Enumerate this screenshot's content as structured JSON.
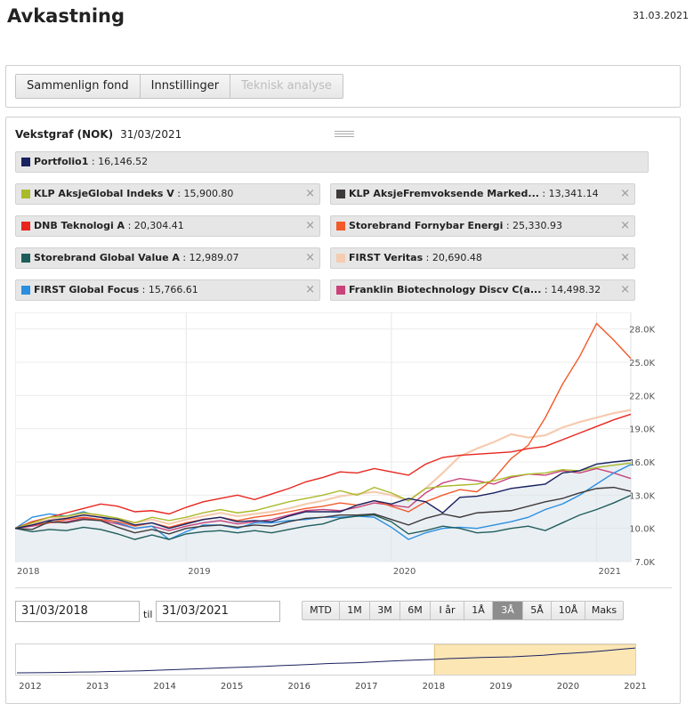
{
  "header": {
    "title": "Avkastning",
    "date": "31.03.2021"
  },
  "tabs": [
    {
      "label": "Sammenlign fond",
      "disabled": false
    },
    {
      "label": "Innstillinger",
      "disabled": false
    },
    {
      "label": "Teknisk analyse",
      "disabled": true
    }
  ],
  "growth": {
    "title": "Vekstgraf (NOK)",
    "date": "31/03/2021"
  },
  "portfolio": {
    "name": "Portfolio1",
    "value": ": 16,146.52",
    "color": "#1a2260"
  },
  "funds": [
    {
      "name": "KLP AksjeGlobal Indeks V",
      "value": ": 15,900.80",
      "color": "#a9ba2a"
    },
    {
      "name": "KLP AksjeFremvoksende Marked...",
      "value": ": 13,341.14",
      "color": "#3e3a3a"
    },
    {
      "name": "DNB Teknologi A",
      "value": ": 20,304.41",
      "color": "#e8261f"
    },
    {
      "name": "Storebrand Fornybar Energi",
      "value": ": 25,330.93",
      "color": "#f25a2a"
    },
    {
      "name": "Storebrand Global Value A",
      "value": ": 12,989.07",
      "color": "#1f5d5a"
    },
    {
      "name": "FIRST Veritas",
      "value": ": 20,690.48",
      "color": "#f5ccb0"
    },
    {
      "name": "FIRST Global Focus",
      "value": ": 15,766.61",
      "color": "#2a8fe0"
    },
    {
      "name": "Franklin Biotechnology Discv C(a...",
      "value": ": 14,498.32",
      "color": "#c9427a"
    }
  ],
  "chart_data": {
    "type": "line",
    "x_ticks": [
      "2018",
      "2019",
      "2020",
      "2021"
    ],
    "y_ticks": [
      "7.0K",
      "10.0K",
      "13.0K",
      "16.0K",
      "19.0K",
      "22.0K",
      "25.0K",
      "28.0K"
    ],
    "ylim": [
      7000,
      29500
    ],
    "xlim": [
      0,
      36
    ],
    "grid": true,
    "series": [
      {
        "name": "Portfolio1",
        "color": "#1a2260",
        "fill": true,
        "values": [
          10000,
          10300,
          10700,
          10900,
          11200,
          11000,
          10800,
          10300,
          10500,
          10000,
          10400,
          10800,
          11000,
          10600,
          10700,
          10600,
          11100,
          11500,
          11500,
          11500,
          12100,
          12500,
          12200,
          12700,
          12400,
          11400,
          12800,
          12900,
          13200,
          13600,
          13800,
          14000,
          15000,
          15200,
          15800,
          16000,
          16150
        ]
      },
      {
        "name": "KLP AksjeGlobal Indeks V",
        "color": "#a9ba2a",
        "values": [
          10000,
          10500,
          11000,
          11100,
          11400,
          11200,
          10900,
          10500,
          11000,
          10700,
          11000,
          11400,
          11700,
          11400,
          11600,
          12000,
          12400,
          12700,
          13000,
          13400,
          13000,
          13700,
          13200,
          12500,
          13600,
          13800,
          13900,
          14000,
          14300,
          14700,
          14900,
          15000,
          15300,
          15200,
          15500,
          15700,
          15900
        ]
      },
      {
        "name": "KLP AksjeFremvoksende Marked...",
        "color": "#3e3a3a",
        "values": [
          10000,
          9900,
          10600,
          10500,
          10800,
          10700,
          10100,
          9600,
          9900,
          9500,
          10000,
          10200,
          10300,
          10100,
          10300,
          10200,
          10600,
          10900,
          11000,
          11200,
          11200,
          11300,
          10800,
          10300,
          10900,
          11300,
          11000,
          11400,
          11500,
          11600,
          12000,
          12400,
          12700,
          13200,
          13600,
          13700,
          13341
        ]
      },
      {
        "name": "DNB Teknologi A",
        "color": "#e8261f",
        "values": [
          10000,
          10600,
          11000,
          11400,
          11800,
          12200,
          12000,
          11500,
          11600,
          11300,
          11900,
          12400,
          12700,
          13000,
          12600,
          13100,
          13600,
          14200,
          14600,
          15100,
          15000,
          15400,
          15100,
          14800,
          15800,
          16400,
          16600,
          16700,
          16800,
          16900,
          17200,
          17400,
          18000,
          18600,
          19200,
          19800,
          20304
        ]
      },
      {
        "name": "Storebrand Fornybar Energi",
        "color": "#f25a2a",
        "values": [
          10000,
          10300,
          10500,
          10800,
          11000,
          10800,
          10600,
          10200,
          10500,
          10100,
          10500,
          10800,
          11000,
          10700,
          11000,
          11200,
          11500,
          11800,
          12000,
          12300,
          12100,
          12500,
          12000,
          11500,
          12400,
          13000,
          13500,
          13300,
          14500,
          16300,
          17500,
          20000,
          23000,
          25500,
          28500,
          27000,
          25330
        ]
      },
      {
        "name": "Storebrand Global Value A",
        "color": "#1f5d5a",
        "values": [
          10000,
          9700,
          9900,
          9800,
          10100,
          9900,
          9500,
          9000,
          9400,
          9000,
          9500,
          9700,
          9800,
          9600,
          9800,
          9600,
          9900,
          10200,
          10400,
          10900,
          11100,
          11200,
          10600,
          9500,
          9800,
          10200,
          10000,
          9600,
          9700,
          10000,
          10200,
          9800,
          10500,
          11200,
          11700,
          12300,
          12989
        ]
      },
      {
        "name": "FIRST Veritas",
        "color": "#f5ccb0",
        "values": [
          10000,
          10400,
          10800,
          11000,
          11300,
          11100,
          10900,
          10500,
          10800,
          10400,
          10800,
          11100,
          11400,
          11100,
          11300,
          11500,
          11800,
          12200,
          12500,
          12900,
          13100,
          13300,
          13000,
          12500,
          13600,
          15000,
          16500,
          17200,
          17800,
          18500,
          18200,
          18400,
          19100,
          19600,
          20000,
          20400,
          20690
        ]
      },
      {
        "name": "FIRST Global Focus",
        "color": "#2a8fe0",
        "values": [
          10000,
          11000,
          11300,
          11100,
          11500,
          11000,
          10500,
          10000,
          10200,
          9000,
          9700,
          10300,
          10300,
          10000,
          10500,
          10500,
          10700,
          10800,
          11000,
          11000,
          11100,
          11000,
          10100,
          9000,
          9600,
          10000,
          10100,
          10000,
          10300,
          10600,
          11000,
          11700,
          12200,
          13000,
          14000,
          15000,
          15766
        ]
      },
      {
        "name": "Franklin Biotechnology Discv C(a...",
        "color": "#c9427a",
        "values": [
          10000,
          10200,
          10500,
          10600,
          10900,
          10700,
          10400,
          10000,
          10200,
          9800,
          10200,
          10500,
          10700,
          10400,
          10600,
          10800,
          11200,
          11600,
          11700,
          11600,
          11900,
          12300,
          12100,
          11900,
          13200,
          14100,
          14500,
          14300,
          14000,
          14600,
          14900,
          14800,
          15200,
          15000,
          15400,
          15000,
          14498
        ]
      }
    ]
  },
  "date_range": {
    "from": "31/03/2018",
    "till_label": "til",
    "to": "31/03/2021"
  },
  "range_buttons": [
    {
      "label": "MTD",
      "active": false
    },
    {
      "label": "1M",
      "active": false
    },
    {
      "label": "3M",
      "active": false
    },
    {
      "label": "6M",
      "active": false
    },
    {
      "label": "I år",
      "active": false
    },
    {
      "label": "1Å",
      "active": false
    },
    {
      "label": "3Å",
      "active": true
    },
    {
      "label": "5Å",
      "active": false
    },
    {
      "label": "10Å",
      "active": false
    },
    {
      "label": "Maks",
      "active": false
    }
  ],
  "navigator": {
    "years": [
      "2012",
      "2013",
      "2014",
      "2015",
      "2016",
      "2017",
      "2018",
      "2019",
      "2020",
      "2021"
    ],
    "selection": [
      "2018",
      "2021"
    ],
    "values": [
      1.0,
      1.01,
      1.03,
      1.05,
      1.08,
      1.1,
      1.14,
      1.18,
      1.22,
      1.28,
      1.34,
      1.4,
      1.46,
      1.52,
      1.58,
      1.64,
      1.7,
      1.78,
      1.84,
      1.92,
      2.0,
      2.05,
      2.1,
      2.18,
      2.26,
      2.34,
      2.4,
      2.46,
      2.55,
      2.6,
      2.66,
      2.7,
      2.74,
      2.82,
      2.9,
      3.05,
      3.15,
      3.25,
      3.4,
      3.55,
      3.7
    ]
  }
}
